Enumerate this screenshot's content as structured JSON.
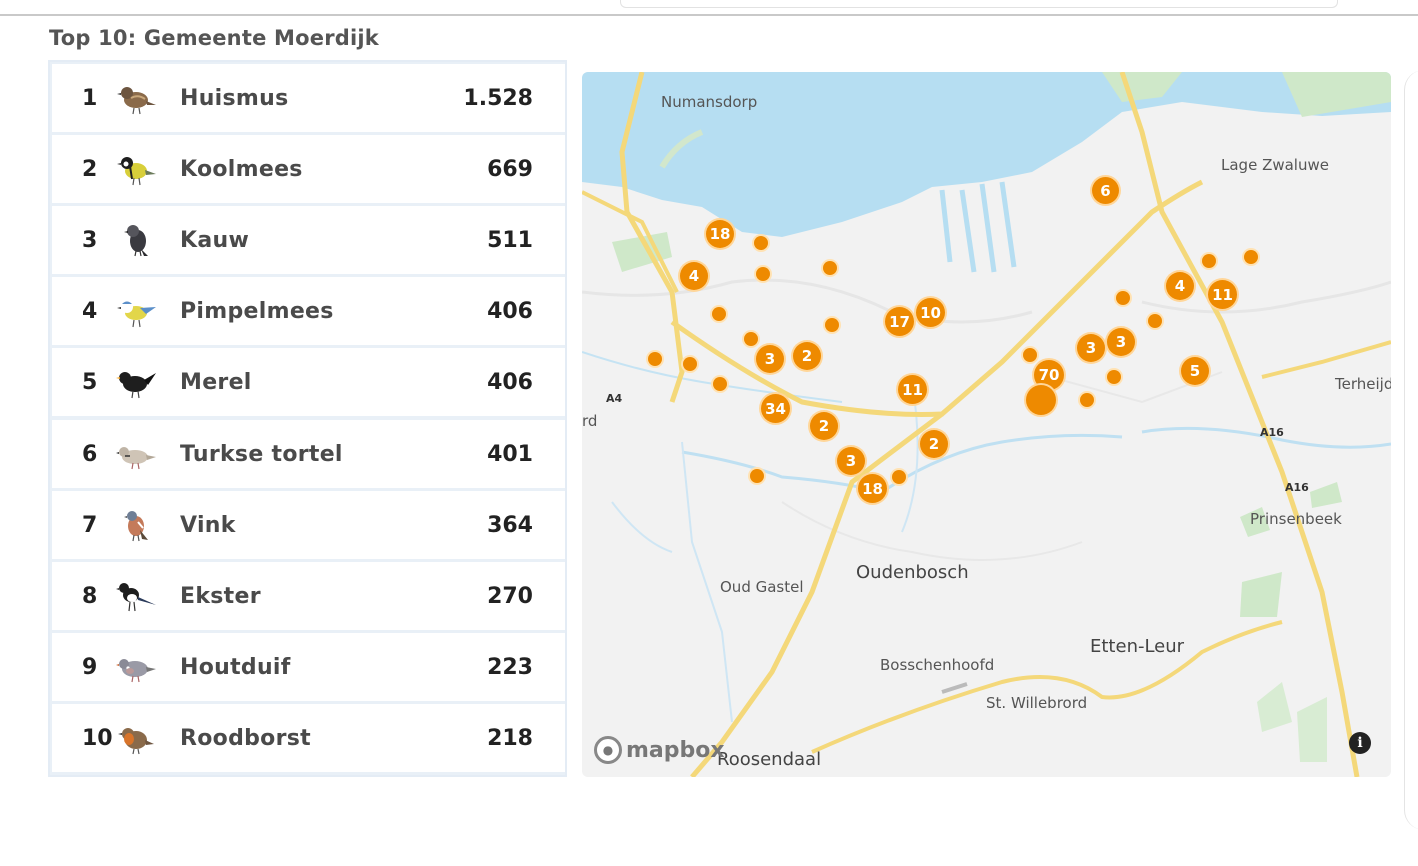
{
  "title": "Top 10: Gemeente Moerdijk",
  "birds": [
    {
      "rank": "1",
      "name": "Huismus",
      "count": "1.528",
      "color": "#8a6a4a"
    },
    {
      "rank": "2",
      "name": "Koolmees",
      "count": "669",
      "color": "#d8cf3a"
    },
    {
      "rank": "3",
      "name": "Kauw",
      "count": "511",
      "color": "#3a3a40"
    },
    {
      "rank": "4",
      "name": "Pimpelmees",
      "count": "406",
      "color": "#5b8fc9"
    },
    {
      "rank": "5",
      "name": "Merel",
      "count": "406",
      "color": "#1e1e1e"
    },
    {
      "rank": "6",
      "name": "Turkse tortel",
      "count": "401",
      "color": "#c8bdb0"
    },
    {
      "rank": "7",
      "name": "Vink",
      "count": "364",
      "color": "#a86a4a"
    },
    {
      "rank": "8",
      "name": "Ekster",
      "count": "270",
      "color": "#222222"
    },
    {
      "rank": "9",
      "name": "Houtduif",
      "count": "223",
      "color": "#9a9aa6"
    },
    {
      "rank": "10",
      "name": "Roodborst",
      "count": "218",
      "color": "#c86a2a"
    }
  ],
  "map": {
    "places": {
      "numansdorp": "Numansdorp",
      "lage_zwaluwe": "Lage Zwaluwe",
      "terheijden": "Terheijd",
      "prinsenbeek": "Prinsenbeek",
      "oudenbosch": "Oudenbosch",
      "oud_gastel": "Oud Gastel",
      "etten_leur": "Etten-Leur",
      "bosschenhoofd": "Bosschenhoofd",
      "st_willebrord": "St. Willebrord",
      "roosendaal": "Roosendaal",
      "rd": "rd"
    },
    "roads": {
      "a4": "A4",
      "a16_1": "A16",
      "a16_2": "A16"
    },
    "clusters": [
      "18",
      "4",
      "6",
      "4",
      "11",
      "17",
      "10",
      "3",
      "2",
      "11",
      "3",
      "3",
      "70",
      "5",
      "34",
      "2",
      "2",
      "3",
      "18"
    ],
    "logo": "mapbox",
    "info": "i",
    "marker_color": "#ee8a00"
  }
}
